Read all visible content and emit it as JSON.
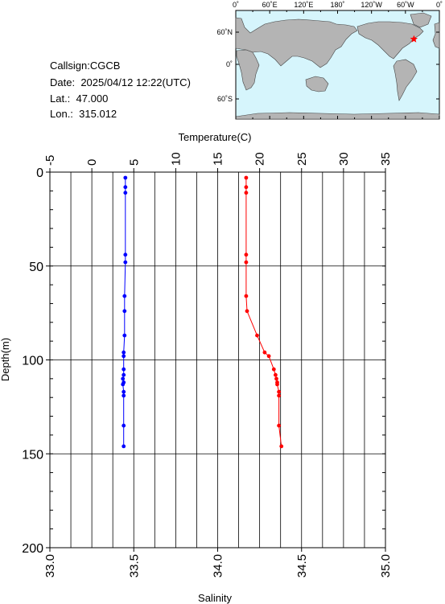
{
  "info": {
    "callsign_label": "Callsign:",
    "callsign": "CGCB",
    "date_label": "Date:",
    "date": "2025/04/12 12:22(UTC)",
    "lat_label": "Lat.:",
    "lat": "47.000",
    "lon_label": "Lon.:",
    "lon": "315.012"
  },
  "map": {
    "lon_ticks": [
      "0˚",
      "60˚E",
      "120˚E",
      "180˚",
      "120˚W",
      "60˚W",
      "0˚"
    ],
    "lat_ticks": [
      "60˚N",
      "0˚",
      "60˚S"
    ],
    "ocean_color": "#d6f5fc",
    "land_color": "#b4b4b4",
    "marker_color": "#ff0000",
    "marker_icon": "star-icon",
    "marker_lon": 315.012,
    "marker_lat": 47.0
  },
  "chart_data": {
    "type": "line",
    "ylabel": "Depth(m)",
    "ylim": [
      200,
      0
    ],
    "y_ticks": [
      0,
      50,
      100,
      150,
      200
    ],
    "top_axis": {
      "label": "Temperature(C)",
      "range": [
        -5,
        35
      ],
      "ticks": [
        -5,
        0,
        5,
        10,
        15,
        20,
        25,
        30,
        35
      ]
    },
    "bottom_axis": {
      "label": "Salinity",
      "range": [
        33.0,
        35.0
      ],
      "ticks": [
        "33.0",
        "33.5",
        "34.0",
        "34.5",
        "35.0"
      ]
    },
    "grid": true,
    "series": [
      {
        "axis": "top",
        "color": "#ff0000",
        "points": [
          {
            "x": 18.4,
            "y": 3
          },
          {
            "x": 18.4,
            "y": 8
          },
          {
            "x": 18.4,
            "y": 11
          },
          {
            "x": 18.4,
            "y": 44
          },
          {
            "x": 18.4,
            "y": 48
          },
          {
            "x": 18.4,
            "y": 66
          },
          {
            "x": 18.5,
            "y": 74
          },
          {
            "x": 19.7,
            "y": 87
          },
          {
            "x": 20.6,
            "y": 96
          },
          {
            "x": 21.1,
            "y": 98
          },
          {
            "x": 21.7,
            "y": 105
          },
          {
            "x": 21.9,
            "y": 108
          },
          {
            "x": 22.0,
            "y": 110
          },
          {
            "x": 22.1,
            "y": 112
          },
          {
            "x": 22.1,
            "y": 113
          },
          {
            "x": 22.3,
            "y": 117
          },
          {
            "x": 22.3,
            "y": 119
          },
          {
            "x": 22.3,
            "y": 135
          },
          {
            "x": 22.6,
            "y": 146
          }
        ]
      },
      {
        "axis": "bottom",
        "color": "#0000ff",
        "points": [
          {
            "x": 33.45,
            "y": 3
          },
          {
            "x": 33.45,
            "y": 8
          },
          {
            "x": 33.45,
            "y": 11
          },
          {
            "x": 33.45,
            "y": 44
          },
          {
            "x": 33.45,
            "y": 48
          },
          {
            "x": 33.445,
            "y": 66
          },
          {
            "x": 33.445,
            "y": 74
          },
          {
            "x": 33.445,
            "y": 87
          },
          {
            "x": 33.44,
            "y": 96
          },
          {
            "x": 33.44,
            "y": 98
          },
          {
            "x": 33.44,
            "y": 105
          },
          {
            "x": 33.44,
            "y": 108
          },
          {
            "x": 33.435,
            "y": 110
          },
          {
            "x": 33.44,
            "y": 112
          },
          {
            "x": 33.435,
            "y": 113
          },
          {
            "x": 33.44,
            "y": 117
          },
          {
            "x": 33.44,
            "y": 119
          },
          {
            "x": 33.44,
            "y": 135
          },
          {
            "x": 33.44,
            "y": 146
          }
        ]
      }
    ]
  }
}
